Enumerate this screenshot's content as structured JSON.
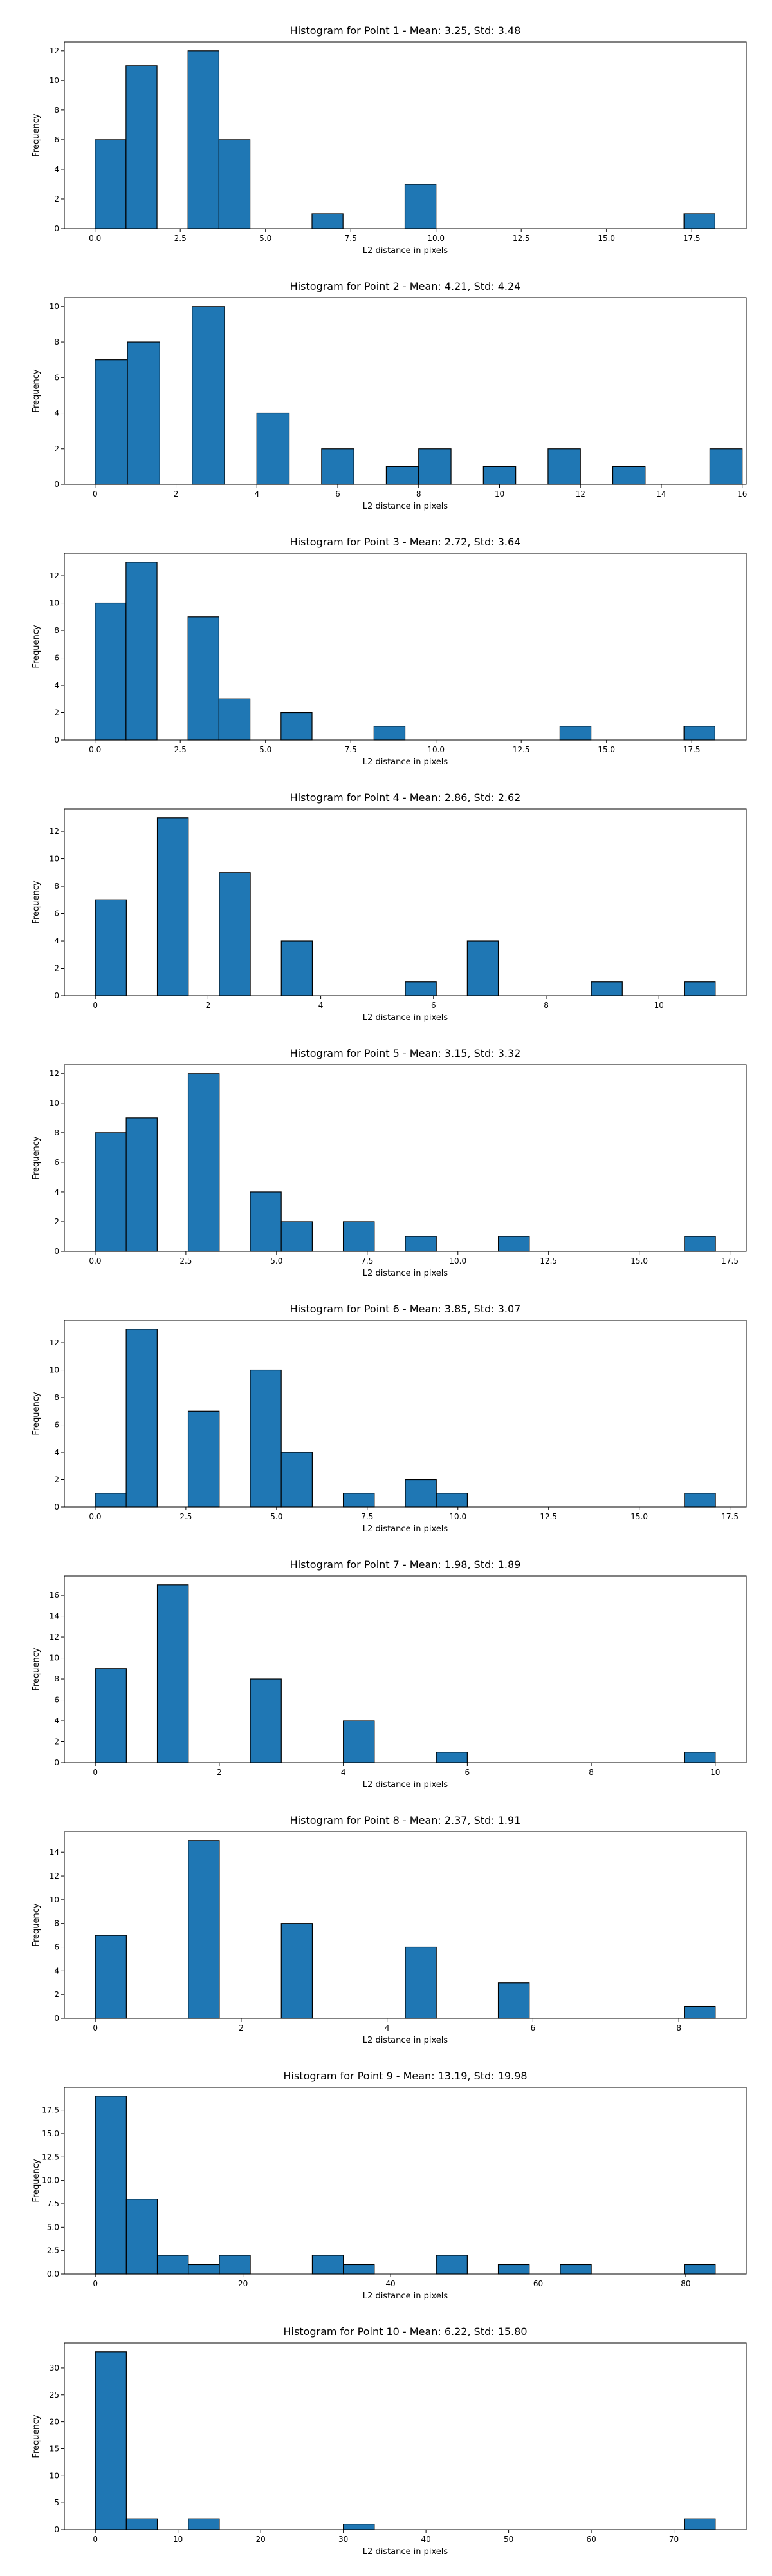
{
  "figure": {
    "background": "#ffffff",
    "bar_color": "#1f77b4",
    "edge_color": "#000000"
  },
  "chart_data": [
    {
      "type": "bar",
      "title": "Histogram for Point 1 - Mean: 3.25, Std: 3.48",
      "xlabel": "L2 distance in pixels",
      "ylabel": "Frequency",
      "xlim": [
        -0.9,
        19.1
      ],
      "ylim": [
        0,
        12.6
      ],
      "xticks": [
        0,
        2.5,
        5,
        7.5,
        10,
        12.5,
        15,
        17.5
      ],
      "xtick_labels": [
        "0.0",
        "2.5",
        "5.0",
        "7.5",
        "10.0",
        "12.5",
        "15.0",
        "17.5"
      ],
      "yticks": [
        0,
        2,
        4,
        6,
        8,
        10,
        12
      ],
      "ytick_labels": [
        "0",
        "2",
        "4",
        "6",
        "8",
        "10",
        "12"
      ],
      "bins": [
        [
          0.0,
          0.909
        ],
        [
          0.909,
          1.818
        ],
        [
          2.727,
          3.636
        ],
        [
          3.636,
          4.545
        ],
        [
          6.364,
          7.273
        ],
        [
          9.091,
          10.0
        ],
        [
          17.273,
          18.182
        ]
      ],
      "values": [
        6,
        11,
        12,
        6,
        1,
        3,
        1
      ]
    },
    {
      "type": "bar",
      "title": "Histogram for Point 2 - Mean: 4.21, Std: 4.24",
      "xlabel": "L2 distance in pixels",
      "ylabel": "Frequency",
      "xlim": [
        -0.76,
        16.1
      ],
      "ylim": [
        0,
        10.5
      ],
      "xticks": [
        0,
        2,
        4,
        6,
        8,
        10,
        12,
        14,
        16
      ],
      "xtick_labels": [
        "0",
        "2",
        "4",
        "6",
        "8",
        "10",
        "12",
        "14",
        "16"
      ],
      "yticks": [
        0,
        2,
        4,
        6,
        8,
        10
      ],
      "ytick_labels": [
        "0",
        "2",
        "4",
        "6",
        "8",
        "10"
      ],
      "bins": [
        [
          0.0,
          0.8
        ],
        [
          0.8,
          1.6
        ],
        [
          2.4,
          3.2
        ],
        [
          4.0,
          4.8
        ],
        [
          5.6,
          6.4
        ],
        [
          7.2,
          8.0
        ],
        [
          8.0,
          8.8
        ],
        [
          9.6,
          10.4
        ],
        [
          11.2,
          12.0
        ],
        [
          12.8,
          13.6
        ],
        [
          15.2,
          16.0
        ]
      ],
      "values": [
        7,
        8,
        10,
        4,
        2,
        1,
        2,
        1,
        2,
        1,
        2
      ]
    },
    {
      "type": "bar",
      "title": "Histogram for Point 3 - Mean: 2.72, Std: 3.64",
      "xlabel": "L2 distance in pixels",
      "ylabel": "Frequency",
      "xlim": [
        -0.9,
        19.1
      ],
      "ylim": [
        0,
        13.65
      ],
      "xticks": [
        0,
        2.5,
        5,
        7.5,
        10,
        12.5,
        15,
        17.5
      ],
      "xtick_labels": [
        "0.0",
        "2.5",
        "5.0",
        "7.5",
        "10.0",
        "12.5",
        "15.0",
        "17.5"
      ],
      "yticks": [
        0,
        2,
        4,
        6,
        8,
        10,
        12
      ],
      "ytick_labels": [
        "0",
        "2",
        "4",
        "6",
        "8",
        "10",
        "12"
      ],
      "bins": [
        [
          0.0,
          0.909
        ],
        [
          0.909,
          1.818
        ],
        [
          2.727,
          3.636
        ],
        [
          3.636,
          4.545
        ],
        [
          5.455,
          6.364
        ],
        [
          8.182,
          9.091
        ],
        [
          13.636,
          14.545
        ],
        [
          17.273,
          18.182
        ]
      ],
      "values": [
        10,
        13,
        9,
        3,
        2,
        1,
        1,
        1
      ]
    },
    {
      "type": "bar",
      "title": "Histogram for Point 4 - Mean: 2.86, Std: 2.62",
      "xlabel": "L2 distance in pixels",
      "ylabel": "Frequency",
      "xlim": [
        -0.55,
        11.55
      ],
      "ylim": [
        0,
        13.65
      ],
      "xticks": [
        0,
        2,
        4,
        6,
        8,
        10
      ],
      "xtick_labels": [
        "0",
        "2",
        "4",
        "6",
        "8",
        "10"
      ],
      "yticks": [
        0,
        2,
        4,
        6,
        8,
        10,
        12
      ],
      "ytick_labels": [
        "0",
        "2",
        "4",
        "6",
        "8",
        "10",
        "12"
      ],
      "bins": [
        [
          0.0,
          0.55
        ],
        [
          1.1,
          1.65
        ],
        [
          2.2,
          2.75
        ],
        [
          3.3,
          3.85
        ],
        [
          5.5,
          6.05
        ],
        [
          6.6,
          7.15
        ],
        [
          8.8,
          9.35
        ],
        [
          10.45,
          11.0
        ]
      ],
      "values": [
        7,
        13,
        9,
        4,
        1,
        4,
        1,
        1
      ]
    },
    {
      "type": "bar",
      "title": "Histogram for Point 5 - Mean: 3.15, Std: 3.32",
      "xlabel": "L2 distance in pixels",
      "ylabel": "Frequency",
      "xlim": [
        -0.85,
        17.95
      ],
      "ylim": [
        0,
        12.6
      ],
      "xticks": [
        0,
        2.5,
        5,
        7.5,
        10,
        12.5,
        15,
        17.5
      ],
      "xtick_labels": [
        "0.0",
        "2.5",
        "5.0",
        "7.5",
        "10.0",
        "12.5",
        "15.0",
        "17.5"
      ],
      "yticks": [
        0,
        2,
        4,
        6,
        8,
        10,
        12
      ],
      "ytick_labels": [
        "0",
        "2",
        "4",
        "6",
        "8",
        "10",
        "12"
      ],
      "bins": [
        [
          0.0,
          0.855
        ],
        [
          0.855,
          1.71
        ],
        [
          2.565,
          3.42
        ],
        [
          4.275,
          5.13
        ],
        [
          5.13,
          5.985
        ],
        [
          6.84,
          7.695
        ],
        [
          8.55,
          9.405
        ],
        [
          11.115,
          11.97
        ],
        [
          16.245,
          17.1
        ]
      ],
      "values": [
        8,
        9,
        12,
        4,
        2,
        2,
        1,
        1,
        1
      ]
    },
    {
      "type": "bar",
      "title": "Histogram for Point 6 - Mean: 3.85, Std: 3.07",
      "xlabel": "L2 distance in pixels",
      "ylabel": "Frequency",
      "xlim": [
        -0.85,
        17.95
      ],
      "ylim": [
        0,
        13.65
      ],
      "xticks": [
        0,
        2.5,
        5,
        7.5,
        10,
        12.5,
        15,
        17.5
      ],
      "xtick_labels": [
        "0.0",
        "2.5",
        "5.0",
        "7.5",
        "10.0",
        "12.5",
        "15.0",
        "17.5"
      ],
      "yticks": [
        0,
        2,
        4,
        6,
        8,
        10,
        12
      ],
      "ytick_labels": [
        "0",
        "2",
        "4",
        "6",
        "8",
        "10",
        "12"
      ],
      "bins": [
        [
          0.0,
          0.855
        ],
        [
          0.855,
          1.71
        ],
        [
          2.565,
          3.42
        ],
        [
          4.275,
          5.13
        ],
        [
          5.13,
          5.985
        ],
        [
          6.84,
          7.695
        ],
        [
          8.55,
          9.405
        ],
        [
          9.405,
          10.26
        ],
        [
          16.245,
          17.1
        ]
      ],
      "values": [
        1,
        13,
        7,
        10,
        4,
        1,
        2,
        1,
        1
      ]
    },
    {
      "type": "bar",
      "title": "Histogram for Point 7 - Mean: 1.98, Std: 1.89",
      "xlabel": "L2 distance in pixels",
      "ylabel": "Frequency",
      "xlim": [
        -0.5,
        10.5
      ],
      "ylim": [
        0,
        17.85
      ],
      "xticks": [
        0,
        2,
        4,
        6,
        8,
        10
      ],
      "xtick_labels": [
        "0",
        "2",
        "4",
        "6",
        "8",
        "10"
      ],
      "yticks": [
        0,
        2,
        4,
        6,
        8,
        10,
        12,
        14,
        16
      ],
      "ytick_labels": [
        "0",
        "2",
        "4",
        "6",
        "8",
        "10",
        "12",
        "14",
        "16"
      ],
      "bins": [
        [
          0.0,
          0.5
        ],
        [
          1.0,
          1.5
        ],
        [
          2.5,
          3.0
        ],
        [
          4.0,
          4.5
        ],
        [
          5.5,
          6.0
        ],
        [
          9.5,
          10.0
        ]
      ],
      "values": [
        9,
        17,
        8,
        4,
        1,
        1
      ]
    },
    {
      "type": "bar",
      "title": "Histogram for Point 8 - Mean: 2.37, Std: 1.91",
      "xlabel": "L2 distance in pixels",
      "ylabel": "Frequency",
      "xlim": [
        -0.425,
        8.925
      ],
      "ylim": [
        0,
        15.75
      ],
      "xticks": [
        0,
        2,
        4,
        6,
        8
      ],
      "xtick_labels": [
        "0",
        "2",
        "4",
        "6",
        "8"
      ],
      "yticks": [
        0,
        2,
        4,
        6,
        8,
        10,
        12,
        14
      ],
      "ytick_labels": [
        "0",
        "2",
        "4",
        "6",
        "8",
        "10",
        "12",
        "14"
      ],
      "bins": [
        [
          0.0,
          0.425
        ],
        [
          1.275,
          1.7
        ],
        [
          2.55,
          2.975
        ],
        [
          4.25,
          4.675
        ],
        [
          5.525,
          5.95
        ],
        [
          8.075,
          8.5
        ]
      ],
      "values": [
        7,
        15,
        8,
        6,
        3,
        1
      ]
    },
    {
      "type": "bar",
      "title": "Histogram for Point 9 - Mean: 13.19, Std: 19.98",
      "xlabel": "L2 distance in pixels",
      "ylabel": "Frequency",
      "xlim": [
        -4.2,
        88.2
      ],
      "ylim": [
        0,
        19.95
      ],
      "xticks": [
        0,
        20,
        40,
        60,
        80
      ],
      "xtick_labels": [
        "0",
        "20",
        "40",
        "60",
        "80"
      ],
      "yticks": [
        0,
        2.5,
        5,
        7.5,
        10,
        12.5,
        15,
        17.5
      ],
      "ytick_labels": [
        "0.0",
        "2.5",
        "5.0",
        "7.5",
        "10.0",
        "12.5",
        "15.0",
        "17.5"
      ],
      "bins": [
        [
          0.0,
          4.2
        ],
        [
          4.2,
          8.4
        ],
        [
          8.4,
          12.6
        ],
        [
          12.6,
          16.8
        ],
        [
          16.8,
          21.0
        ],
        [
          29.4,
          33.6
        ],
        [
          33.6,
          37.8
        ],
        [
          46.2,
          50.4
        ],
        [
          54.6,
          58.8
        ],
        [
          63.0,
          67.2
        ],
        [
          79.8,
          84.0
        ]
      ],
      "values": [
        19,
        8,
        2,
        1,
        2,
        2,
        1,
        2,
        1,
        1,
        1
      ]
    },
    {
      "type": "bar",
      "title": "Histogram for Point 10 - Mean: 6.22, Std: 15.80",
      "xlabel": "L2 distance in pixels",
      "ylabel": "Frequency",
      "xlim": [
        -3.75,
        78.75
      ],
      "ylim": [
        0,
        34.65
      ],
      "xticks": [
        0,
        10,
        20,
        30,
        40,
        50,
        60,
        70
      ],
      "xtick_labels": [
        "0",
        "10",
        "20",
        "30",
        "40",
        "50",
        "60",
        "70"
      ],
      "yticks": [
        0,
        5,
        10,
        15,
        20,
        25,
        30
      ],
      "ytick_labels": [
        "0",
        "5",
        "10",
        "15",
        "20",
        "25",
        "30"
      ],
      "bins": [
        [
          0.0,
          3.75
        ],
        [
          3.75,
          7.5
        ],
        [
          11.25,
          15.0
        ],
        [
          30.0,
          33.75
        ],
        [
          71.25,
          75.0
        ]
      ],
      "values": [
        33,
        2,
        2,
        1,
        2
      ]
    }
  ]
}
